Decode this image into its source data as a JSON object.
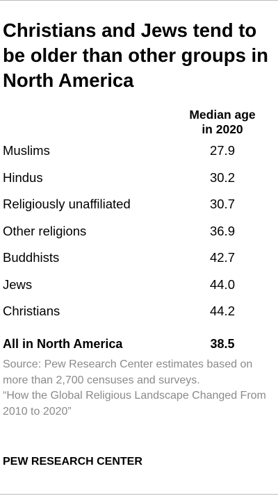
{
  "title": "Christians and Jews tend to be older than other groups in North America",
  "column_header": {
    "line1": "Median age",
    "line2": "in 2020"
  },
  "chart_data": {
    "type": "table",
    "title": "Christians and Jews tend to be older than other groups in North America",
    "columns": [
      "Median age in 2020"
    ],
    "rows": [
      {
        "label": "Muslims",
        "value": "27.9"
      },
      {
        "label": "Hindus",
        "value": "30.2"
      },
      {
        "label": "Religiously unaffiliated",
        "value": "30.7"
      },
      {
        "label": "Other religions",
        "value": "36.9"
      },
      {
        "label": "Buddhists",
        "value": "42.7"
      },
      {
        "label": "Jews",
        "value": "44.0"
      },
      {
        "label": "Christians",
        "value": "44.2"
      }
    ],
    "total": {
      "label": "All in North America",
      "value": "38.5"
    }
  },
  "source": "Source: Pew Research Center estimates based on more than 2,700 censuses and surveys.",
  "report": "“How the Global Religious Landscape Changed From 2010 to 2020”",
  "brand": "PEW RESEARCH CENTER"
}
